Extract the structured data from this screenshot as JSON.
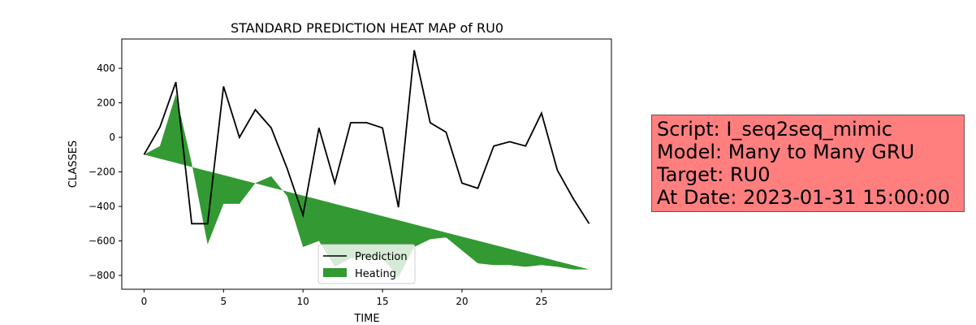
{
  "chart_data": {
    "type": "line",
    "title": "STANDARD PREDICTION HEAT MAP of RU0",
    "xlabel": "TIME",
    "ylabel": "CLASSES",
    "xlim": [
      -1.4,
      29.4
    ],
    "ylim": [
      -880,
      570
    ],
    "xticks": [
      0,
      5,
      10,
      15,
      20,
      25
    ],
    "yticks": [
      -800,
      -600,
      -400,
      -200,
      0,
      200,
      400
    ],
    "grid": false,
    "legend_position": "lower-center",
    "x": [
      0,
      1,
      2,
      3,
      4,
      5,
      6,
      7,
      8,
      9,
      10,
      11,
      12,
      13,
      14,
      15,
      16,
      17,
      18,
      19,
      20,
      21,
      22,
      23,
      24,
      25,
      26,
      27,
      28
    ],
    "series": [
      {
        "name": "Prediction",
        "kind": "line",
        "color": "#000000",
        "values": [
          -100,
          60,
          320,
          -500,
          -500,
          295,
          0,
          160,
          55,
          -180,
          -450,
          55,
          -265,
          85,
          85,
          55,
          -405,
          505,
          85,
          30,
          -265,
          -295,
          -50,
          -25,
          -50,
          140,
          -190,
          -355,
          -500
        ]
      },
      {
        "name": "Heating",
        "kind": "fill_between",
        "color": "#339933",
        "baseline": {
          "from": [
            0,
            -100
          ],
          "to": [
            28,
            -765
          ]
        },
        "values": [
          -100,
          -50,
          250,
          -150,
          -620,
          -385,
          -385,
          -265,
          -225,
          -340,
          -635,
          -600,
          -750,
          -700,
          -700,
          -700,
          -810,
          -635,
          -590,
          -580,
          -655,
          -730,
          -740,
          -740,
          -750,
          -740,
          -750,
          -765,
          -765
        ]
      }
    ]
  },
  "info": {
    "lines": [
      "Script: I_seq2seq_mimic",
      "Model: Many to Many GRU",
      "Target: RU0",
      "At Date: 2023-01-31 15:00:00"
    ],
    "background": "#ff7f7f"
  }
}
